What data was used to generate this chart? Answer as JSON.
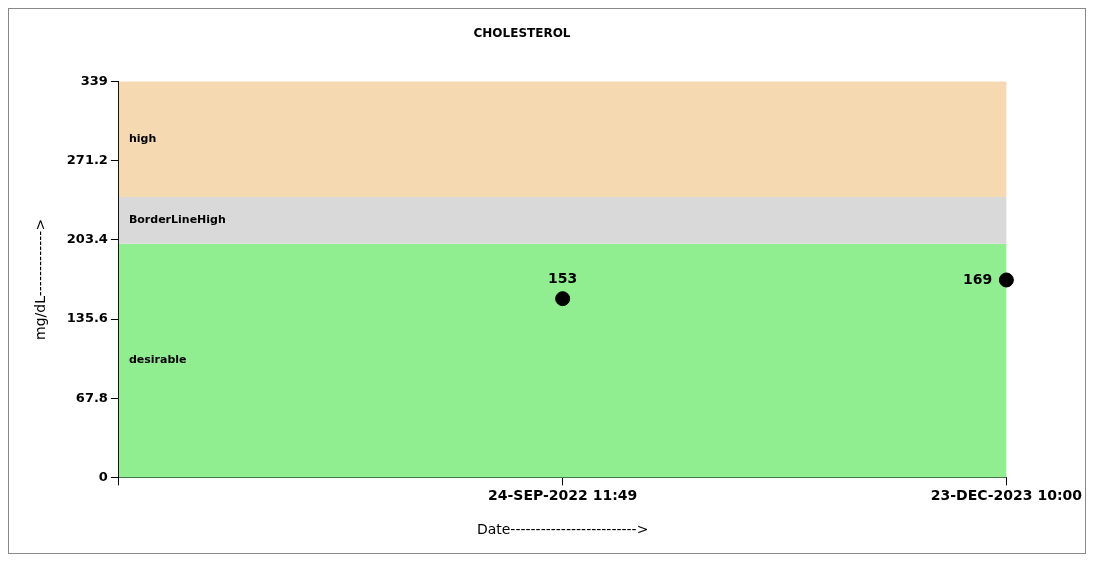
{
  "chart_data": {
    "type": "scatter",
    "title": "CHOLESTEROL",
    "xlabel": "Date------------------------->",
    "ylabel": "mg/dL------------->",
    "categories": [
      null,
      "24-SEP-2022 11:49",
      "23-DEC-2023 10:00"
    ],
    "values": [
      null,
      153,
      169
    ],
    "color": "#000000",
    "marker": "circle",
    "data_labels": true,
    "ylim": [
      0,
      339
    ],
    "yticks": [
      0,
      67.8,
      135.6,
      203.4,
      271.2,
      339
    ],
    "grid": false,
    "legend": false,
    "bands": [
      {
        "axis": "y",
        "from": 0,
        "to": 200,
        "label": "desirable",
        "color": "#90ee90"
      },
      {
        "axis": "y",
        "from": 200,
        "to": 240,
        "label": "BorderLineHigh",
        "color": "#d9d9d9"
      },
      {
        "axis": "y",
        "from": 240,
        "to": 339,
        "label": "high",
        "color": "#f5d9b0"
      }
    ]
  }
}
